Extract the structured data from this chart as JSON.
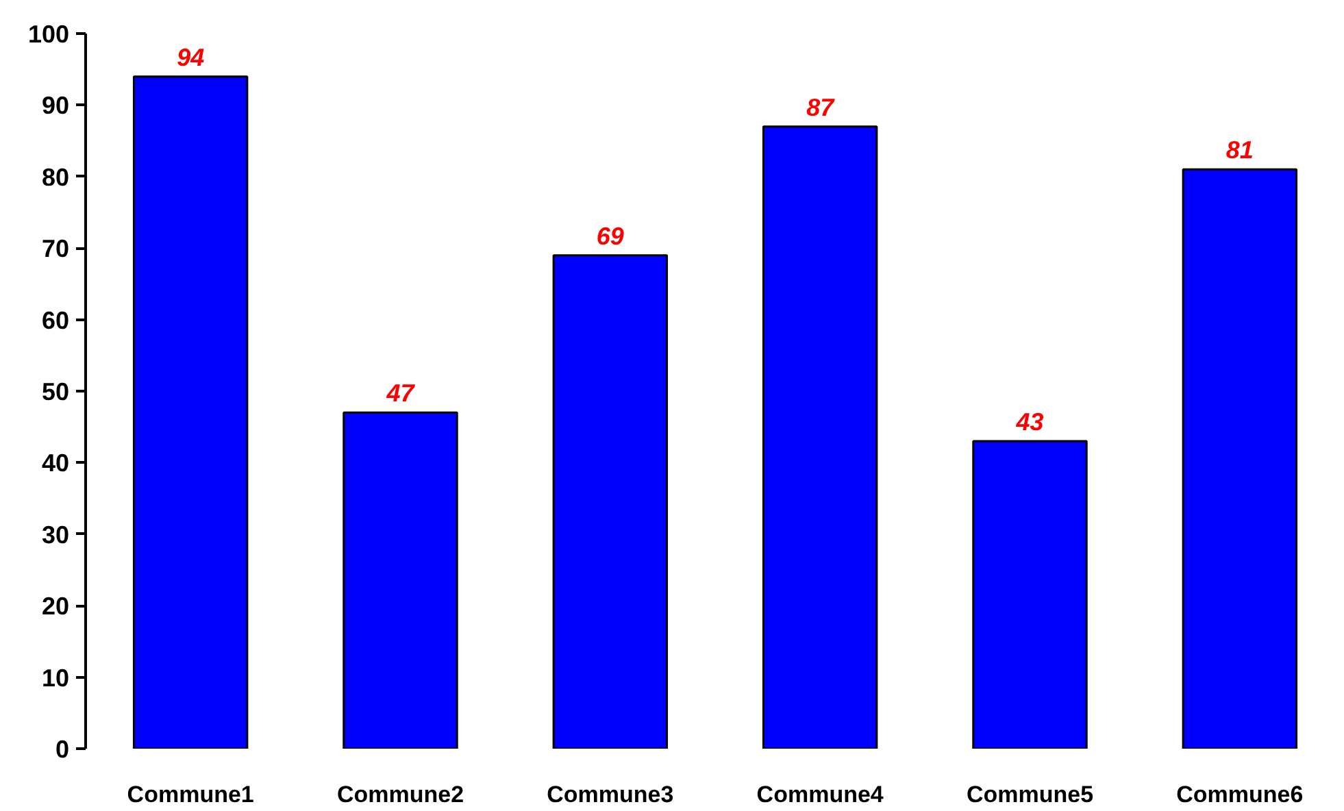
{
  "chart_data": {
    "type": "bar",
    "categories": [
      "Commune1",
      "Commune2",
      "Commune3",
      "Commune4",
      "Commune5",
      "Commune6"
    ],
    "values": [
      94,
      47,
      69,
      87,
      43,
      81
    ],
    "color": "#0000ff",
    "ylim": [
      0,
      100
    ],
    "yticks": [
      0,
      10,
      20,
      30,
      40,
      50,
      60,
      70,
      80,
      90,
      100
    ],
    "data_labels": true
  }
}
